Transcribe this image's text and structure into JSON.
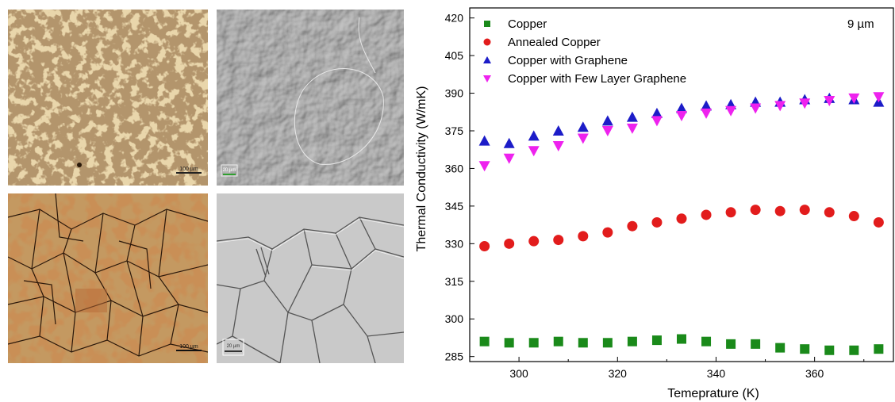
{
  "micrographs": [
    {
      "id": "top-left",
      "scale_label": "100 µm"
    },
    {
      "id": "top-right",
      "scale_label": "20 µm"
    },
    {
      "id": "bottom-left",
      "scale_label": "100 µm"
    },
    {
      "id": "bottom-right",
      "scale_label": "20 µm"
    }
  ],
  "chart_data": {
    "type": "scatter",
    "xlabel": "Temeprature (K)",
    "ylabel": "Thermal Conductivity (W/mK)",
    "annotation": "9 µm",
    "xlim": [
      290,
      376
    ],
    "ylim": [
      283,
      424
    ],
    "xticks": [
      300,
      320,
      340,
      360
    ],
    "yticks": [
      285,
      300,
      315,
      330,
      345,
      360,
      375,
      390,
      405,
      420
    ],
    "legend_position": "top-left",
    "series": [
      {
        "name": "Copper",
        "marker": "square",
        "color": "#1a8a1a",
        "points": [
          [
            293,
            291
          ],
          [
            298,
            290.5
          ],
          [
            303,
            290.5
          ],
          [
            308,
            291
          ],
          [
            313,
            290.5
          ],
          [
            318,
            290.5
          ],
          [
            323,
            291
          ],
          [
            328,
            291.5
          ],
          [
            333,
            292
          ],
          [
            338,
            291
          ],
          [
            343,
            290
          ],
          [
            348,
            290
          ],
          [
            353,
            288.5
          ],
          [
            358,
            288
          ],
          [
            363,
            287.5
          ],
          [
            368,
            287.5
          ],
          [
            373,
            288
          ]
        ]
      },
      {
        "name": "Annealed Copper",
        "marker": "circle",
        "color": "#e21c1c",
        "points": [
          [
            293,
            329
          ],
          [
            298,
            330
          ],
          [
            303,
            331
          ],
          [
            308,
            331.5
          ],
          [
            313,
            333
          ],
          [
            318,
            334.5
          ],
          [
            323,
            337
          ],
          [
            328,
            338.5
          ],
          [
            333,
            340
          ],
          [
            338,
            341.5
          ],
          [
            343,
            342.5
          ],
          [
            348,
            343.5
          ],
          [
            353,
            343
          ],
          [
            358,
            343.5
          ],
          [
            363,
            342.5
          ],
          [
            368,
            341
          ],
          [
            373,
            338.5
          ]
        ]
      },
      {
        "name": "Copper with Graphene",
        "marker": "triangle-up",
        "color": "#1c1cc8",
        "points": [
          [
            293,
            371
          ],
          [
            298,
            370
          ],
          [
            303,
            373
          ],
          [
            308,
            375
          ],
          [
            313,
            376.5
          ],
          [
            318,
            379
          ],
          [
            323,
            380.5
          ],
          [
            328,
            382
          ],
          [
            333,
            384
          ],
          [
            338,
            385
          ],
          [
            343,
            385.5
          ],
          [
            348,
            386.5
          ],
          [
            353,
            386.5
          ],
          [
            358,
            387.5
          ],
          [
            363,
            388
          ],
          [
            368,
            387.5
          ],
          [
            373,
            386.5
          ]
        ]
      },
      {
        "name": "Copper with Few Layer Graphene",
        "marker": "triangle-down",
        "color": "#ee22ee",
        "points": [
          [
            293,
            361
          ],
          [
            298,
            364
          ],
          [
            303,
            367
          ],
          [
            308,
            369
          ],
          [
            313,
            372
          ],
          [
            318,
            375
          ],
          [
            323,
            376
          ],
          [
            328,
            379
          ],
          [
            333,
            381
          ],
          [
            338,
            382
          ],
          [
            343,
            383
          ],
          [
            348,
            384
          ],
          [
            353,
            385
          ],
          [
            358,
            386
          ],
          [
            363,
            387
          ],
          [
            368,
            388
          ],
          [
            373,
            388.5
          ]
        ]
      }
    ]
  }
}
